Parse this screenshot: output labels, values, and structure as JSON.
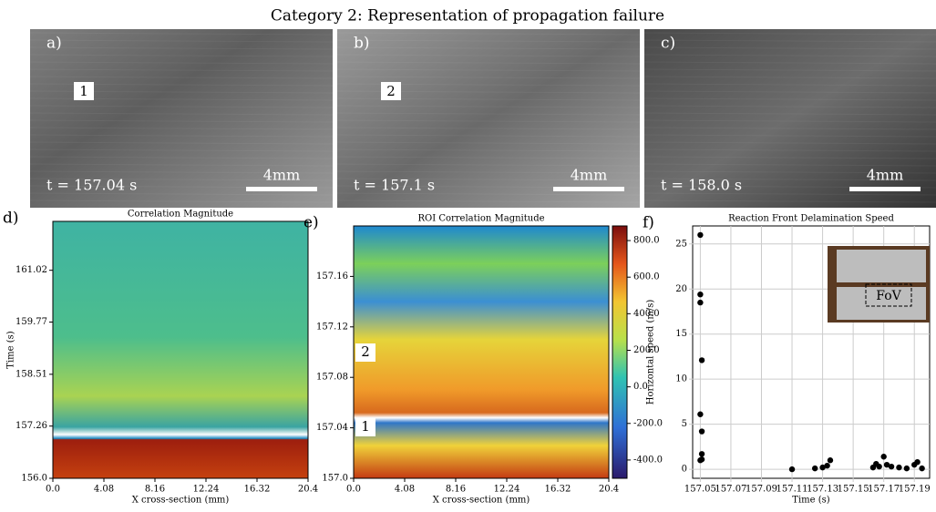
{
  "title": "Category 2: Representation of propagation failure",
  "images": [
    {
      "label": "a)",
      "time": "t = 157.04 s",
      "scale": "4mm",
      "marker": "1"
    },
    {
      "label": "b)",
      "time": "t = 157.1 s",
      "scale": "4mm",
      "marker": "2"
    },
    {
      "label": "c)",
      "time": "t = 158.0 s",
      "scale": "4mm"
    }
  ],
  "chart_data": [
    {
      "type": "heatmap",
      "panel": "d)",
      "title": "Correlation Magnitude",
      "xlabel": "X cross-section (mm)",
      "ylabel": "Time (s)",
      "xlim": [
        0,
        20.4
      ],
      "xticks": [
        {
          "value": 0,
          "label": "0.0"
        },
        4.08,
        8.16,
        12.24,
        16.32,
        20.4
      ],
      "ylim": [
        156,
        162.2
      ],
      "yticks": [
        {
          "value": 156,
          "label": "156.0"
        },
        157.26,
        158.51,
        159.77,
        161.02
      ]
    },
    {
      "type": "heatmap",
      "panel": "e)",
      "title": "ROI Correlation Magnitude",
      "xlabel": "X cross-section (mm)",
      "xlim": [
        0,
        20.4
      ],
      "xticks": [
        {
          "value": 0,
          "label": "0.0"
        },
        4.08,
        8.16,
        12.24,
        16.32,
        20.4
      ],
      "ylim": [
        157,
        157.2
      ],
      "yticks": [
        {
          "value": 157,
          "label": "157.0"
        },
        157.04,
        157.08,
        157.12,
        157.16
      ],
      "clim": [
        -500,
        880
      ],
      "cticks": [
        {
          "value": 800,
          "label": "800.0"
        },
        {
          "value": 600,
          "label": "600.0"
        },
        {
          "value": 400,
          "label": "400.0"
        },
        {
          "value": 200,
          "label": "200.0"
        },
        {
          "value": 0,
          "label": "0.0"
        },
        {
          "value": -200,
          "label": "-200.0"
        },
        {
          "value": -400,
          "label": "-400.0"
        }
      ],
      "annotations": [
        "1",
        "2"
      ]
    },
    {
      "type": "scatter",
      "panel": "f)",
      "title": "Reaction Front Delamination Speed",
      "xlabel": "Time (s)",
      "ylabel": "Horizontal speed (m/s)",
      "grid": true,
      "color": "#000000",
      "xlim": [
        157.045,
        157.2
      ],
      "xticks": [
        157.05,
        157.07,
        157.09,
        157.11,
        157.13,
        157.15,
        157.17,
        157.19
      ],
      "ylim": [
        -1,
        27
      ],
      "yticks": [
        0,
        5,
        10,
        15,
        20,
        25
      ],
      "x": [
        157.05,
        157.05,
        157.05,
        157.051,
        157.05,
        157.051,
        157.051,
        157.05,
        157.051,
        157.11,
        157.125,
        157.13,
        157.133,
        157.135,
        157.163,
        157.165,
        157.167,
        157.17,
        157.172,
        157.175,
        157.18,
        157.185,
        157.19,
        157.192,
        157.195
      ],
      "values": [
        26,
        19.4,
        18.5,
        12.1,
        6.1,
        4.2,
        1.7,
        1.0,
        1.1,
        0,
        0.1,
        0.2,
        0.4,
        1.0,
        0.2,
        0.6,
        0.3,
        1.4,
        0.5,
        0.3,
        0.2,
        0.1,
        0.5,
        0.8,
        0.1
      ],
      "inset": "FoV"
    }
  ]
}
